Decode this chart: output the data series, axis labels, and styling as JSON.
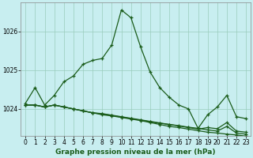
{
  "background_color": "#c8eef0",
  "grid_color": "#99ccbb",
  "line_color": "#1a5c1a",
  "xlabel": "Graphe pression niveau de la mer (hPa)",
  "ylim": [
    1023.3,
    1026.75
  ],
  "xlim": [
    -0.5,
    23.5
  ],
  "yticks": [
    1024,
    1025,
    1026
  ],
  "xticks": [
    0,
    1,
    2,
    3,
    4,
    5,
    6,
    7,
    8,
    9,
    10,
    11,
    12,
    13,
    14,
    15,
    16,
    17,
    18,
    19,
    20,
    21,
    22,
    23
  ],
  "series": [
    [
      1024.15,
      1024.55,
      1024.1,
      1024.35,
      1024.7,
      1024.85,
      1025.15,
      1025.25,
      1025.3,
      1025.65,
      1026.55,
      1026.35,
      1025.6,
      1024.95,
      1024.55,
      1024.3,
      1024.1,
      1024.0,
      1023.5,
      1023.85,
      1024.05,
      1024.35,
      1023.8,
      1023.75
    ],
    [
      1024.1,
      1024.1,
      1024.05,
      1024.1,
      1024.05,
      1024.0,
      1023.95,
      1023.9,
      1023.85,
      1023.82,
      1023.78,
      1023.74,
      1023.7,
      1023.65,
      1023.6,
      1023.55,
      1023.52,
      1023.48,
      1023.44,
      1023.4,
      1023.38,
      1023.35,
      1023.33,
      1023.3
    ],
    [
      1024.1,
      1024.1,
      1024.05,
      1024.1,
      1024.05,
      1024.0,
      1023.95,
      1023.9,
      1023.88,
      1023.84,
      1023.8,
      1023.76,
      1023.72,
      1023.68,
      1023.64,
      1023.6,
      1023.57,
      1023.53,
      1023.5,
      1023.46,
      1023.43,
      1023.55,
      1023.38,
      1023.35
    ],
    [
      1024.1,
      1024.1,
      1024.05,
      1024.1,
      1024.05,
      1024.0,
      1023.95,
      1023.9,
      1023.87,
      1023.83,
      1023.79,
      1023.75,
      1023.71,
      1023.67,
      1023.63,
      1023.6,
      1023.56,
      1023.52,
      1023.48,
      1023.52,
      1023.49,
      1023.65,
      1023.43,
      1023.4
    ]
  ],
  "marker": "+",
  "markersize": 3.5,
  "linewidth": 0.9,
  "tick_fontsize": 5.5,
  "xlabel_fontsize": 6.5
}
